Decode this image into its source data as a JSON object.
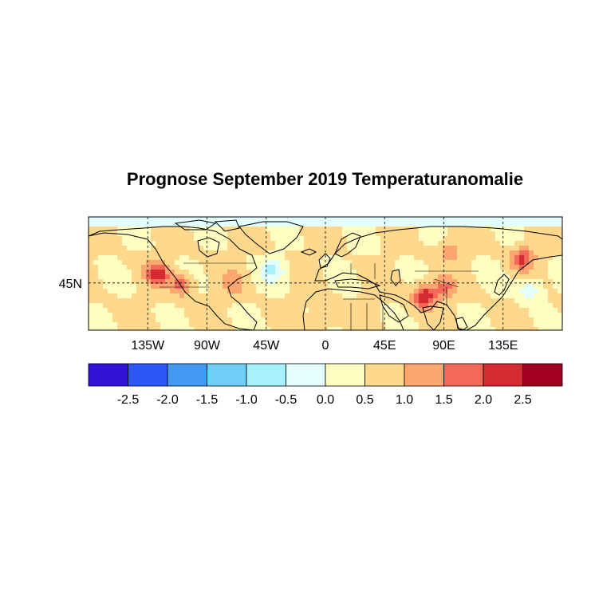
{
  "title": "Prognose September 2019 Temperaturanomalie",
  "map": {
    "lon_ticks": [
      {
        "lon": -135,
        "label": "135W"
      },
      {
        "lon": -90,
        "label": "90W"
      },
      {
        "lon": -45,
        "label": "45W"
      },
      {
        "lon": 0,
        "label": "0"
      },
      {
        "lon": 45,
        "label": "45E"
      },
      {
        "lon": 90,
        "label": "90E"
      },
      {
        "lon": 135,
        "label": "135E"
      }
    ],
    "lat_ticks": [
      {
        "lat": 45,
        "label": "45N"
      }
    ],
    "lon_range": [
      -180,
      180
    ],
    "lat_range": [
      20,
      80
    ],
    "gridlines": "dashed",
    "hotspots": [
      {
        "lon": -128,
        "lat": 50,
        "value": 2.2
      },
      {
        "lon": -110,
        "lat": 44,
        "value": 1.7
      },
      {
        "lon": -70,
        "lat": 45,
        "value": 1.2
      },
      {
        "lon": 75,
        "lat": 38,
        "value": 2.4
      },
      {
        "lon": 90,
        "lat": 42,
        "value": 1.6
      },
      {
        "lon": 150,
        "lat": 58,
        "value": 2.0
      },
      {
        "lon": 95,
        "lat": 62,
        "value": 1.3
      },
      {
        "lon": 0,
        "lat": 27,
        "value": 1.1
      },
      {
        "lon": -40,
        "lat": 52,
        "value": -0.6
      },
      {
        "lon": 155,
        "lat": 42,
        "value": -0.5
      },
      {
        "lon": 30,
        "lat": 65,
        "value": 0.2
      }
    ]
  },
  "colorbar": {
    "colors": [
      "#3111d6",
      "#2d58f8",
      "#4499f5",
      "#6fcff8",
      "#a7f0fd",
      "#e2fefe",
      "#fffec1",
      "#fed88d",
      "#fda66f",
      "#f36959",
      "#d52a31",
      "#a10021"
    ],
    "labels": [
      "-2.5",
      "-2.0",
      "-1.5",
      "-1.0",
      "-0.5",
      "0.0",
      "0.5",
      "1.0",
      "1.5",
      "2.0",
      "2.5"
    ]
  }
}
